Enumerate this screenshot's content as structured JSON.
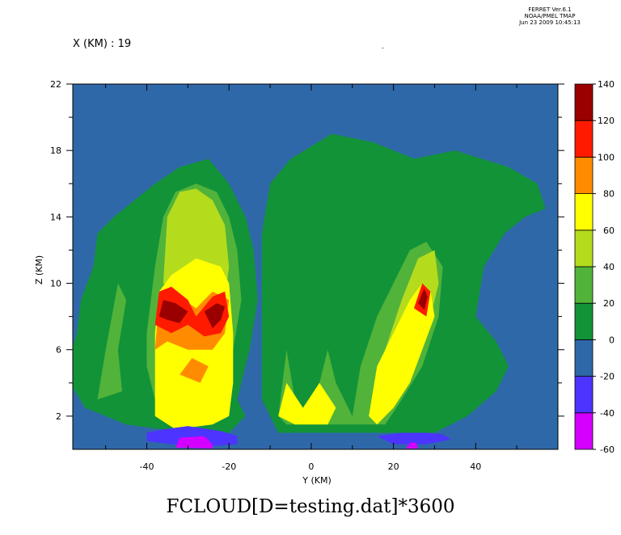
{
  "header": {
    "program": "FERRET Ver.6.1",
    "org": "NOAA/PMEL TMAP",
    "datetime": "Jun 23 2009 10:45:13"
  },
  "fixed_coord": "X (KM) : 19",
  "colors": {
    "-60": "#d400ff",
    "-40": "#4b35ff",
    "-20": "#2f68a8",
    "0": "#129338",
    "20": "#51b33a",
    "40": "#b4dc1d",
    "60": "#ffff00",
    "80": "#ff8c00",
    "100": "#ff1a00",
    "120": "#9a0000"
  },
  "chart_data": {
    "type": "heatmap",
    "title": "FCLOUD[D=testing.dat]*3600",
    "xlabel": "Y (KM)",
    "ylabel": "Z (KM)",
    "xlim": [
      -58,
      60
    ],
    "ylim": [
      0,
      22
    ],
    "x_ticks": [
      -40,
      -20,
      0,
      20,
      40
    ],
    "y_ticks": [
      2,
      6,
      10,
      14,
      18,
      22
    ],
    "colorbar": {
      "levels": [
        -60,
        -40,
        -20,
        0,
        20,
        40,
        60,
        80,
        100,
        120,
        140
      ],
      "labels": [
        "140",
        "120",
        "100",
        "80",
        "60",
        "40",
        "20",
        "0",
        "-20",
        "-40",
        "-60"
      ]
    },
    "features": [
      {
        "level": 0,
        "outline": [
          [
            -60,
            4.5
          ],
          [
            -57,
            7
          ],
          [
            -56,
            9
          ],
          [
            -53,
            11
          ],
          [
            -52,
            13
          ],
          [
            -48,
            14
          ],
          [
            -43,
            15
          ],
          [
            -38,
            16
          ],
          [
            -32,
            17
          ],
          [
            -25,
            17.5
          ],
          [
            -20,
            16
          ],
          [
            -16,
            14
          ],
          [
            -14,
            12
          ],
          [
            -13,
            9
          ],
          [
            -15,
            6
          ],
          [
            -18,
            3
          ],
          [
            -16,
            2
          ],
          [
            -20,
            1
          ],
          [
            -30,
            1
          ],
          [
            -45,
            1.5
          ],
          [
            -55,
            2.5
          ]
        ]
      },
      {
        "level": 0,
        "outline": [
          [
            -12,
            13
          ],
          [
            -10,
            16
          ],
          [
            -5,
            17.5
          ],
          [
            5,
            19
          ],
          [
            15,
            18.5
          ],
          [
            25,
            17.5
          ],
          [
            35,
            18
          ],
          [
            48,
            17
          ],
          [
            55,
            16
          ],
          [
            57,
            14.5
          ],
          [
            52,
            14
          ],
          [
            47,
            13
          ],
          [
            42,
            11
          ],
          [
            40,
            8
          ],
          [
            45,
            6.5
          ],
          [
            48,
            5
          ],
          [
            45,
            3.5
          ],
          [
            38,
            2
          ],
          [
            30,
            1
          ],
          [
            15,
            1
          ],
          [
            -8,
            1
          ],
          [
            -12,
            3
          ]
        ]
      },
      {
        "level": 20,
        "outline": [
          [
            -40,
            7
          ],
          [
            -38,
            11
          ],
          [
            -36,
            14
          ],
          [
            -33,
            15.5
          ],
          [
            -28,
            16
          ],
          [
            -23,
            15.5
          ],
          [
            -20,
            14
          ],
          [
            -18,
            12
          ],
          [
            -17,
            9
          ],
          [
            -19,
            6
          ],
          [
            -21,
            3
          ],
          [
            -24,
            1.5
          ],
          [
            -33,
            1.5
          ],
          [
            -38,
            3
          ],
          [
            -40,
            5
          ]
        ]
      },
      {
        "level": 20,
        "outline": [
          [
            -52,
            3
          ],
          [
            -50,
            6
          ],
          [
            -47,
            10
          ],
          [
            -45,
            9
          ],
          [
            -47,
            6
          ],
          [
            -46,
            3.5
          ]
        ]
      },
      {
        "level": 20,
        "outline": [
          [
            -8,
            2
          ],
          [
            -6,
            6
          ],
          [
            -4,
            3
          ],
          [
            0,
            2
          ],
          [
            4,
            6
          ],
          [
            6,
            4
          ],
          [
            10,
            2
          ],
          [
            12,
            5
          ],
          [
            16,
            8
          ],
          [
            20,
            10
          ],
          [
            24,
            12
          ],
          [
            28,
            12.5
          ],
          [
            32,
            11
          ],
          [
            31,
            8
          ],
          [
            27,
            5
          ],
          [
            22,
            3
          ],
          [
            18,
            1.5
          ],
          [
            10,
            1.5
          ],
          [
            0,
            1.5
          ],
          [
            -6,
            1.5
          ]
        ]
      },
      {
        "level": 40,
        "outline": [
          [
            -36,
            10
          ],
          [
            -35,
            14
          ],
          [
            -32,
            15.5
          ],
          [
            -28,
            15.7
          ],
          [
            -24,
            15
          ],
          [
            -21,
            13.5
          ],
          [
            -20,
            11
          ],
          [
            -21,
            9
          ],
          [
            -25,
            9.5
          ],
          [
            -33,
            9.5
          ]
        ]
      },
      {
        "level": 40,
        "outline": [
          [
            18,
            6
          ],
          [
            22,
            9
          ],
          [
            26,
            11.5
          ],
          [
            30,
            12
          ],
          [
            31,
            10
          ],
          [
            28,
            7
          ],
          [
            24,
            5
          ],
          [
            20,
            4
          ]
        ]
      },
      {
        "level": 60,
        "outline": [
          [
            -38,
            2
          ],
          [
            -38,
            7
          ],
          [
            -37,
            9.5
          ],
          [
            -34,
            10.5
          ],
          [
            -28,
            11.5
          ],
          [
            -22,
            11
          ],
          [
            -20,
            10
          ],
          [
            -19,
            7
          ],
          [
            -19,
            4
          ],
          [
            -20,
            2
          ],
          [
            -24,
            1.5
          ],
          [
            -33,
            1.2
          ]
        ]
      },
      {
        "level": 60,
        "outline": [
          [
            14,
            2
          ],
          [
            16,
            5
          ],
          [
            20,
            7
          ],
          [
            24,
            9
          ],
          [
            27,
            10
          ],
          [
            29,
            9.5
          ],
          [
            30,
            8
          ],
          [
            27,
            6
          ],
          [
            24,
            4
          ],
          [
            20,
            2.5
          ],
          [
            16,
            1.5
          ]
        ]
      },
      {
        "level": 60,
        "outline": [
          [
            -8,
            2
          ],
          [
            -6,
            4
          ],
          [
            -2,
            2.5
          ],
          [
            2,
            4
          ],
          [
            6,
            2.5
          ],
          [
            4,
            1.5
          ],
          [
            -4,
            1.5
          ]
        ]
      },
      {
        "level": 80,
        "outline": [
          [
            -38,
            6
          ],
          [
            -37,
            9
          ],
          [
            -34,
            9.5
          ],
          [
            -28,
            8.5
          ],
          [
            -24,
            9.5
          ],
          [
            -20,
            9
          ],
          [
            -21,
            7
          ],
          [
            -24,
            6
          ],
          [
            -30,
            6
          ],
          [
            -35,
            6.5
          ]
        ]
      },
      {
        "level": 80,
        "outline": [
          [
            -32,
            4.5
          ],
          [
            -29,
            5.5
          ],
          [
            -25,
            5
          ],
          [
            -27,
            4
          ]
        ]
      },
      {
        "level": 100,
        "outline": [
          [
            -38,
            7.5
          ],
          [
            -37,
            9.5
          ],
          [
            -34,
            9.8
          ],
          [
            -30,
            9
          ],
          [
            -28,
            8
          ],
          [
            -24,
            9.2
          ],
          [
            -21,
            9.5
          ],
          [
            -20,
            8
          ],
          [
            -22,
            7
          ],
          [
            -26,
            6.8
          ],
          [
            -30,
            7.5
          ],
          [
            -34,
            7
          ]
        ]
      },
      {
        "level": 100,
        "outline": [
          [
            25,
            8.5
          ],
          [
            27,
            10
          ],
          [
            29,
            9.5
          ],
          [
            28,
            8
          ]
        ]
      },
      {
        "level": 120,
        "outline": [
          [
            -37,
            8
          ],
          [
            -36,
            9
          ],
          [
            -33,
            8.8
          ],
          [
            -30,
            8.3
          ],
          [
            -32,
            7.6
          ],
          [
            -35,
            7.8
          ]
        ]
      },
      {
        "level": 120,
        "outline": [
          [
            -26,
            8.3
          ],
          [
            -23,
            8.8
          ],
          [
            -21,
            8.6
          ],
          [
            -22,
            7.8
          ],
          [
            -24,
            7.3
          ]
        ]
      },
      {
        "level": 120,
        "outline": [
          [
            26,
            8.8
          ],
          [
            27.5,
            9.7
          ],
          [
            28.3,
            9.2
          ],
          [
            27.5,
            8.4
          ]
        ]
      },
      {
        "level": -40,
        "outline": [
          [
            -40,
            1
          ],
          [
            -36,
            1.2
          ],
          [
            -30,
            1.4
          ],
          [
            -22,
            1.1
          ],
          [
            -18,
            0.8
          ],
          [
            -18,
            0.3
          ],
          [
            -24,
            0.2
          ],
          [
            -34,
            0.3
          ],
          [
            -40,
            0.5
          ]
        ]
      },
      {
        "level": -40,
        "outline": [
          [
            16,
            0.8
          ],
          [
            22,
            1
          ],
          [
            28,
            1
          ],
          [
            32,
            0.9
          ],
          [
            34,
            0.6
          ],
          [
            28,
            0.3
          ],
          [
            20,
            0.3
          ]
        ]
      },
      {
        "level": -60,
        "outline": [
          [
            -33,
            0.1
          ],
          [
            -32,
            0.7
          ],
          [
            -26,
            0.8
          ],
          [
            -24,
            0.3
          ],
          [
            -24,
            0.05
          ]
        ]
      },
      {
        "level": -60,
        "outline": [
          [
            23,
            0.05
          ],
          [
            24,
            0.4
          ],
          [
            25.5,
            0.4
          ],
          [
            26,
            0.05
          ]
        ]
      }
    ]
  }
}
